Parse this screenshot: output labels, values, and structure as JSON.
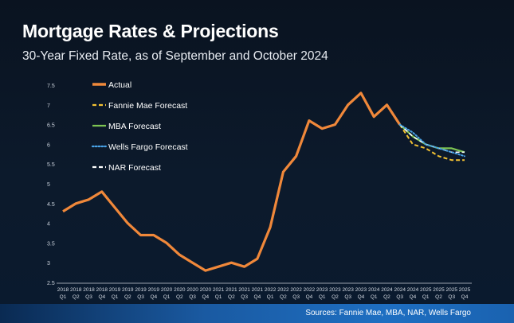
{
  "title": "Mortgage Rates & Projections",
  "subtitle": "30-Year Fixed Rate, as of September and October 2024",
  "source": "Sources: Fannie Mae, MBA, NAR, Wells Fargo",
  "colors": {
    "actual": "#f0883a",
    "fannie": "#f4c232",
    "mba": "#7dc452",
    "wells": "#4aa3e8",
    "nar": "#ffffff"
  },
  "chart_data": {
    "type": "line",
    "title": "Mortgage Rates & Projections",
    "subtitle": "30-Year Fixed Rate, as of September and October 2024",
    "xlabel": "",
    "ylabel": "",
    "ylim": [
      2.5,
      7.5
    ],
    "yticks": [
      "2.5",
      "3",
      "3.5",
      "4",
      "4.5",
      "5",
      "5.5",
      "6",
      "6.5",
      "7",
      "7.5"
    ],
    "grid": false,
    "legend_position": "top-left",
    "categories": [
      [
        "2018",
        "Q1"
      ],
      [
        "2018",
        "Q2"
      ],
      [
        "2018",
        "Q3"
      ],
      [
        "2018",
        "Q4"
      ],
      [
        "2019",
        "Q1"
      ],
      [
        "2019",
        "Q2"
      ],
      [
        "2019",
        "Q3"
      ],
      [
        "2019",
        "Q4"
      ],
      [
        "2020",
        "Q1"
      ],
      [
        "2020",
        "Q2"
      ],
      [
        "2020",
        "Q3"
      ],
      [
        "2020",
        "Q4"
      ],
      [
        "2021",
        "Q1"
      ],
      [
        "2021",
        "Q2"
      ],
      [
        "2021",
        "Q3"
      ],
      [
        "2021",
        "Q4"
      ],
      [
        "2022",
        "Q1"
      ],
      [
        "2022",
        "Q2"
      ],
      [
        "2022",
        "Q3"
      ],
      [
        "2022",
        "Q4"
      ],
      [
        "2023",
        "Q1"
      ],
      [
        "2023",
        "Q2"
      ],
      [
        "2023",
        "Q3"
      ],
      [
        "2023",
        "Q4"
      ],
      [
        "2024",
        "Q1"
      ],
      [
        "2024",
        "Q2"
      ],
      [
        "2024",
        "Q3"
      ],
      [
        "2024",
        "Q4"
      ],
      [
        "2025",
        "Q1"
      ],
      [
        "2025",
        "Q2"
      ],
      [
        "2025",
        "Q3"
      ],
      [
        "2025",
        "Q4"
      ]
    ],
    "series": [
      {
        "name": "Actual",
        "style": "solid",
        "values": [
          4.3,
          4.5,
          4.6,
          4.8,
          4.4,
          4.0,
          3.7,
          3.7,
          3.5,
          3.2,
          3.0,
          2.8,
          2.9,
          3.0,
          2.9,
          3.1,
          3.9,
          5.3,
          5.7,
          6.6,
          6.4,
          6.5,
          7.0,
          7.3,
          6.7,
          7.0,
          6.5,
          null,
          null,
          null,
          null,
          null
        ]
      },
      {
        "name": "Fannie Mae Forecast",
        "style": "dashed",
        "values": [
          null,
          null,
          null,
          null,
          null,
          null,
          null,
          null,
          null,
          null,
          null,
          null,
          null,
          null,
          null,
          null,
          null,
          null,
          null,
          null,
          null,
          null,
          null,
          null,
          null,
          null,
          6.5,
          6.0,
          5.9,
          5.7,
          5.6,
          5.6
        ]
      },
      {
        "name": "MBA Forecast",
        "style": "solid",
        "values": [
          null,
          null,
          null,
          null,
          null,
          null,
          null,
          null,
          null,
          null,
          null,
          null,
          null,
          null,
          null,
          null,
          null,
          null,
          null,
          null,
          null,
          null,
          null,
          null,
          null,
          null,
          6.5,
          6.2,
          6.0,
          5.9,
          5.9,
          5.8
        ]
      },
      {
        "name": "Wells Fargo Forecast",
        "style": "dotted",
        "values": [
          null,
          null,
          null,
          null,
          null,
          null,
          null,
          null,
          null,
          null,
          null,
          null,
          null,
          null,
          null,
          null,
          null,
          null,
          null,
          null,
          null,
          null,
          null,
          null,
          null,
          null,
          6.5,
          6.3,
          6.0,
          5.9,
          5.8,
          5.7
        ]
      },
      {
        "name": "NAR Forecast",
        "style": "dashed",
        "values": [
          null,
          null,
          null,
          null,
          null,
          null,
          null,
          null,
          null,
          null,
          null,
          null,
          null,
          null,
          null,
          null,
          null,
          null,
          null,
          null,
          null,
          null,
          null,
          null,
          null,
          null,
          6.5,
          6.2,
          6.0,
          5.9,
          5.8,
          5.8
        ]
      }
    ]
  }
}
